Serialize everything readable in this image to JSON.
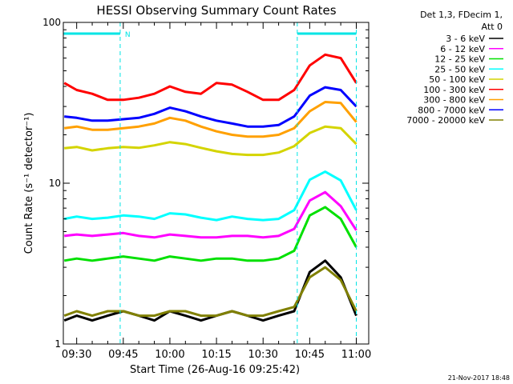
{
  "chart_data": {
    "type": "line",
    "title": "HESSI Observing Summary Count Rates",
    "xlabel": "Start Time (26-Aug-16 09:25:42)",
    "ylabel": "Count Rate (s⁻¹ detector⁻¹)",
    "yscale": "log",
    "ylim": [
      1,
      100
    ],
    "xlim": [
      "09:25:42",
      "11:04"
    ],
    "grid": false,
    "legend_placement": "outside-right",
    "x_ticks": [
      "09:30",
      "09:45",
      "10:00",
      "10:15",
      "10:30",
      "10:45",
      "11:00"
    ],
    "y_ticks": [
      "1",
      "10",
      "100"
    ],
    "legend_header": [
      "Det 1,3, FDecim 1,",
      "Att 0"
    ],
    "timestamp": "21-Nov-2017 18:48",
    "markers": {
      "label": "N",
      "color": "#00e5e5",
      "bars": [
        [
          "09:25:42",
          "09:44"
        ],
        [
          "10:41",
          "11:00"
        ]
      ],
      "vlines": [
        "09:44",
        "10:41",
        "11:00"
      ]
    },
    "x": [
      "09:26",
      "09:30",
      "09:35",
      "09:40",
      "09:45",
      "09:50",
      "09:55",
      "10:00",
      "10:05",
      "10:10",
      "10:15",
      "10:20",
      "10:25",
      "10:30",
      "10:35",
      "10:40",
      "10:45",
      "10:50",
      "10:55",
      "11:00"
    ],
    "series": [
      {
        "name": "3 - 6 keV",
        "color": "#000000",
        "values": [
          1.4,
          1.5,
          1.4,
          1.5,
          1.6,
          1.5,
          1.4,
          1.6,
          1.5,
          1.4,
          1.5,
          1.6,
          1.5,
          1.4,
          1.5,
          1.6,
          2.8,
          3.3,
          2.6,
          1.5
        ]
      },
      {
        "name": "6 - 12 keV",
        "color": "#ff00ff",
        "values": [
          4.7,
          4.8,
          4.7,
          4.8,
          4.9,
          4.7,
          4.6,
          4.8,
          4.7,
          4.6,
          4.6,
          4.7,
          4.7,
          4.6,
          4.7,
          5.2,
          7.8,
          8.8,
          7.2,
          5.1
        ]
      },
      {
        "name": "12 - 25 keV",
        "color": "#00e000",
        "values": [
          3.3,
          3.4,
          3.3,
          3.4,
          3.5,
          3.4,
          3.3,
          3.5,
          3.4,
          3.3,
          3.4,
          3.4,
          3.3,
          3.3,
          3.4,
          3.8,
          6.3,
          7.1,
          6.0,
          4.0
        ]
      },
      {
        "name": "25 - 50 keV",
        "color": "#00ffff",
        "values": [
          6.0,
          6.2,
          6.0,
          6.1,
          6.3,
          6.2,
          6.0,
          6.5,
          6.4,
          6.1,
          5.9,
          6.2,
          6.0,
          5.9,
          6.0,
          6.8,
          10.5,
          11.8,
          10.4,
          6.8
        ]
      },
      {
        "name": "50 - 100 keV",
        "color": "#d4d400",
        "values": [
          16.5,
          16.8,
          16.0,
          16.5,
          16.8,
          16.6,
          17.2,
          18.0,
          17.5,
          16.6,
          15.8,
          15.2,
          15.0,
          15.0,
          15.5,
          17.0,
          20.5,
          22.5,
          22.0,
          17.5
        ]
      },
      {
        "name": "100 - 300 keV",
        "color": "#ff0000",
        "values": [
          42,
          38,
          36,
          33,
          33,
          34,
          36,
          40,
          37,
          36,
          42,
          41,
          37,
          33,
          33,
          38,
          54,
          63,
          60,
          42
        ]
      },
      {
        "name": "300 - 800 keV",
        "color": "#ffa000",
        "values": [
          22.0,
          22.5,
          21.5,
          21.5,
          22.0,
          22.5,
          23.5,
          25.5,
          24.5,
          22.5,
          21.0,
          20.0,
          19.5,
          19.5,
          20.0,
          22.0,
          28.0,
          32.0,
          31.5,
          24.0
        ]
      },
      {
        "name": "800 - 7000 keV",
        "color": "#0000ff",
        "values": [
          26.0,
          25.5,
          24.5,
          24.5,
          25.0,
          25.5,
          27.0,
          29.5,
          28.0,
          26.0,
          24.5,
          23.5,
          22.5,
          22.5,
          23.0,
          26.0,
          35.0,
          39.5,
          38.0,
          30.0
        ]
      },
      {
        "name": "7000 - 20000 keV",
        "color": "#808000",
        "values": [
          1.5,
          1.6,
          1.5,
          1.6,
          1.6,
          1.5,
          1.5,
          1.6,
          1.6,
          1.5,
          1.5,
          1.6,
          1.5,
          1.5,
          1.6,
          1.7,
          2.6,
          3.0,
          2.5,
          1.6
        ]
      }
    ]
  }
}
